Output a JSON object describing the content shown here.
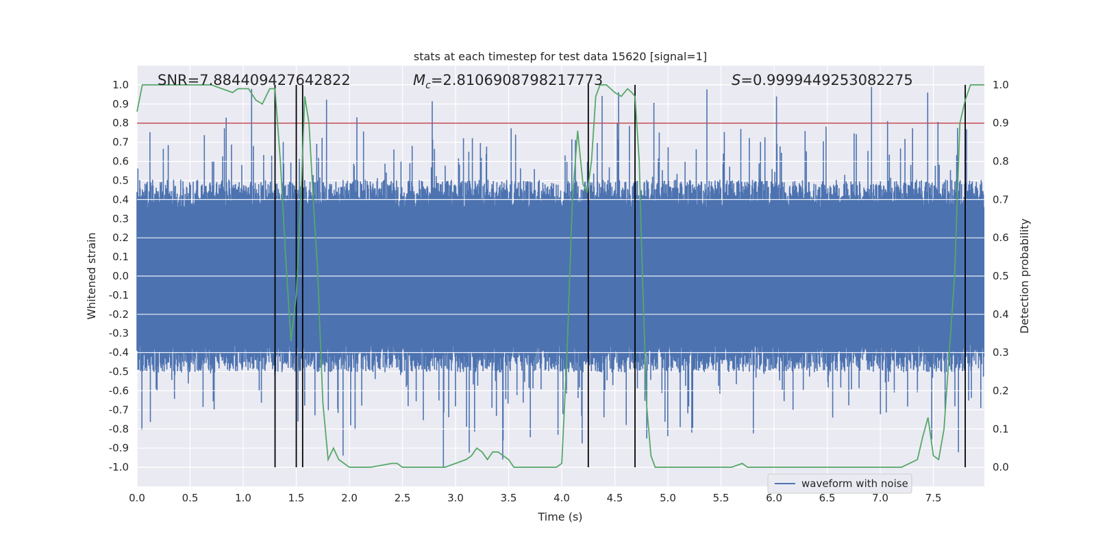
{
  "chart_data": {
    "type": "line",
    "title": "stats at each timestep for test data 15620 [signal=1]",
    "xlabel": "Time (s)",
    "ylabel_left": "Whitened strain",
    "ylabel_right": "Detection probability",
    "xlim": [
      0.0,
      7.98
    ],
    "ylim_left": [
      -1.1,
      1.1
    ],
    "ylim_right": [
      -0.05,
      1.05
    ],
    "xticks": [
      "0.0",
      "0.5",
      "1.0",
      "1.5",
      "2.0",
      "2.5",
      "3.0",
      "3.5",
      "4.0",
      "4.5",
      "5.0",
      "5.5",
      "6.0",
      "6.5",
      "7.0",
      "7.5"
    ],
    "xtick_values": [
      0.0,
      0.5,
      1.0,
      1.5,
      2.0,
      2.5,
      3.0,
      3.5,
      4.0,
      4.5,
      5.0,
      5.5,
      6.0,
      6.5,
      7.0,
      7.5
    ],
    "yticks_left": [
      "1.0",
      "0.9",
      "0.8",
      "0.7",
      "0.6",
      "0.5",
      "0.4",
      "0.3",
      "0.2",
      "0.1",
      "0.0",
      "-0.1",
      "-0.2",
      "-0.3",
      "-0.4",
      "-0.5",
      "-0.6",
      "-0.7",
      "-0.8",
      "-0.9",
      "-1.0"
    ],
    "ytick_values_left": [
      1.0,
      0.9,
      0.8,
      0.7,
      0.6,
      0.5,
      0.4,
      0.3,
      0.2,
      0.1,
      0.0,
      -0.1,
      -0.2,
      -0.3,
      -0.4,
      -0.5,
      -0.6,
      -0.7,
      -0.8,
      -0.9,
      -1.0
    ],
    "yticks_right": [
      "1.0",
      "0.9",
      "0.8",
      "0.7",
      "0.6",
      "0.5",
      "0.4",
      "0.3",
      "0.2",
      "0.1",
      "0.0"
    ],
    "ytick_values_right": [
      1.0,
      0.9,
      0.8,
      0.7,
      0.6,
      0.5,
      0.4,
      0.3,
      0.2,
      0.1,
      0.0
    ],
    "annotations": {
      "snr": "SNR=7.884409427642822",
      "mc_symbol": "M",
      "mc_sub": "c",
      "mc_value": "=2.8106908798217773",
      "s_symbol": "S",
      "s_value": "=0.9999449253082275"
    },
    "threshold": {
      "value": 0.9,
      "axis": "right",
      "color": "#c44e52"
    },
    "event_markers_x": [
      1.3,
      1.5,
      1.56,
      4.25,
      4.69,
      7.8
    ],
    "marker_range_right": [
      0.0,
      1.0
    ],
    "waveform": {
      "name": "waveform with noise",
      "color": "#4c72b0",
      "typical_envelope": 0.42,
      "max_abs": 1.0
    },
    "probability": {
      "color": "#55a868",
      "x": [
        0.0,
        0.05,
        0.1,
        0.2,
        0.3,
        0.4,
        0.5,
        0.6,
        0.7,
        0.8,
        0.9,
        0.95,
        1.0,
        1.05,
        1.12,
        1.18,
        1.25,
        1.3,
        1.35,
        1.4,
        1.45,
        1.5,
        1.55,
        1.58,
        1.62,
        1.66,
        1.7,
        1.75,
        1.8,
        1.85,
        1.9,
        2.0,
        2.2,
        2.4,
        2.45,
        2.5,
        2.6,
        2.8,
        2.9,
        3.0,
        3.1,
        3.15,
        3.2,
        3.25,
        3.3,
        3.35,
        3.4,
        3.5,
        3.55,
        3.6,
        3.8,
        3.95,
        4.0,
        4.05,
        4.1,
        4.15,
        4.2,
        4.24,
        4.28,
        4.32,
        4.36,
        4.42,
        4.46,
        4.5,
        4.56,
        4.62,
        4.66,
        4.69,
        4.73,
        4.76,
        4.8,
        4.84,
        4.88,
        4.95,
        5.1,
        5.4,
        5.6,
        5.7,
        5.75,
        5.8,
        6.0,
        6.3,
        6.4,
        6.8,
        7.0,
        7.2,
        7.35,
        7.4,
        7.45,
        7.5,
        7.55,
        7.6,
        7.65,
        7.7,
        7.75,
        7.8,
        7.85,
        7.88,
        7.98
      ],
      "y": [
        0.93,
        1.0,
        1.0,
        1.0,
        1.0,
        1.0,
        1.0,
        1.0,
        1.0,
        0.99,
        0.98,
        0.99,
        0.99,
        0.99,
        0.96,
        0.95,
        0.99,
        0.99,
        0.8,
        0.55,
        0.33,
        0.45,
        0.75,
        0.97,
        0.9,
        0.7,
        0.52,
        0.17,
        0.02,
        0.05,
        0.02,
        0.0,
        0.0,
        0.01,
        0.01,
        0.0,
        0.0,
        0.0,
        0.0,
        0.01,
        0.02,
        0.03,
        0.05,
        0.04,
        0.02,
        0.04,
        0.04,
        0.02,
        0.0,
        0.0,
        0.0,
        0.0,
        0.01,
        0.3,
        0.7,
        0.88,
        0.74,
        0.72,
        0.8,
        0.97,
        1.0,
        1.0,
        0.99,
        0.98,
        0.97,
        0.99,
        0.98,
        0.97,
        0.8,
        0.5,
        0.16,
        0.03,
        0.0,
        0.0,
        0.0,
        0.0,
        0.0,
        0.01,
        0.0,
        0.0,
        0.0,
        0.0,
        0.0,
        0.0,
        0.0,
        0.0,
        0.02,
        0.08,
        0.13,
        0.03,
        0.02,
        0.1,
        0.3,
        0.5,
        0.9,
        0.96,
        1.0,
        1.0,
        1.0
      ]
    },
    "legend": {
      "entries": [
        "waveform with noise"
      ],
      "placement": "bottom-right"
    }
  }
}
